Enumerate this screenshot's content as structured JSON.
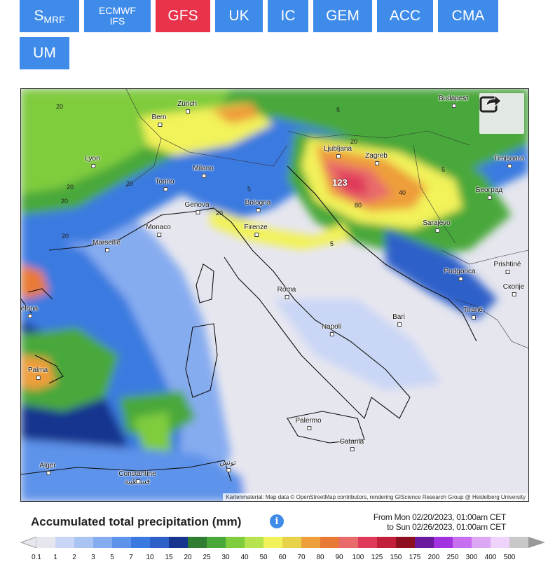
{
  "model_tabs": [
    {
      "id": "smrf",
      "label_main": "S",
      "label_sub": "MRF",
      "active": false
    },
    {
      "id": "ecmwf",
      "label_line1": "ECMWF",
      "label_line2": "IFS",
      "active": false
    },
    {
      "id": "gfs",
      "label": "GFS",
      "active": true
    },
    {
      "id": "uk",
      "label": "UK",
      "active": false
    },
    {
      "id": "ic",
      "label": "IC",
      "active": false
    },
    {
      "id": "gem",
      "label": "GEM",
      "active": false
    },
    {
      "id": "acc",
      "label": "ACC",
      "active": false
    },
    {
      "id": "cma",
      "label": "CMA",
      "active": false
    },
    {
      "id": "um",
      "label": "UM",
      "active": false
    }
  ],
  "map": {
    "cities": [
      "Budapest",
      "Bern",
      "Zürich",
      "Lyon",
      "Milano",
      "Torino",
      "Genova",
      "Bologna",
      "Firenze",
      "Monaco",
      "Marseille",
      "Ljubljana",
      "Zagreb",
      "Timișoara",
      "Београд",
      "Sarajevo",
      "Podgorica",
      "Prishtinë",
      "Скопје",
      "Tiranë",
      "Roma",
      "Napoli",
      "Bari",
      "Palermo",
      "Catania",
      "Palma",
      "Alger",
      "Constantine\nقسنطينة",
      "تونس",
      "elona"
    ],
    "contour_labels": [
      "20",
      "5",
      "20",
      "20",
      "20",
      "5",
      "20",
      "40",
      "80",
      "5",
      "20",
      "5",
      "20"
    ],
    "max_value": "123",
    "share_icon": "share-icon",
    "attribution": "Kartenmaterial: Map data © OpenStreetMap contributors, rendering GIScience Research Group @ Heidelberg University"
  },
  "legend": {
    "title": "Accumulated total precipitation (mm)",
    "info_icon": "info-icon",
    "from_text": "From Mon 02/20/2023, 01:00am CET",
    "to_text": "to Sun 02/26/2023, 01:00am CET",
    "scale_values": [
      "0.1",
      "1",
      "2",
      "3",
      "5",
      "7",
      "10",
      "15",
      "20",
      "25",
      "30",
      "40",
      "50",
      "60",
      "70",
      "80",
      "90",
      "100",
      "125",
      "150",
      "175",
      "200",
      "250",
      "300",
      "400",
      "500"
    ],
    "scale_colors": [
      "#e6e6ef",
      "#c9d6f5",
      "#a9c3f3",
      "#86acf0",
      "#5d93ea",
      "#3a7ae0",
      "#2e60c9",
      "#17348e",
      "#2f7d32",
      "#4aa83a",
      "#7fcc3c",
      "#b7e34e",
      "#f2f25a",
      "#e8d24a",
      "#ee9e3a",
      "#e97a35",
      "#e86a6a",
      "#e03a5a",
      "#c21f3a",
      "#8e1020",
      "#6b1aa0",
      "#a232e0",
      "#c86ef0",
      "#dca8f5",
      "#efd3fa",
      "#c8c8c8"
    ]
  }
}
